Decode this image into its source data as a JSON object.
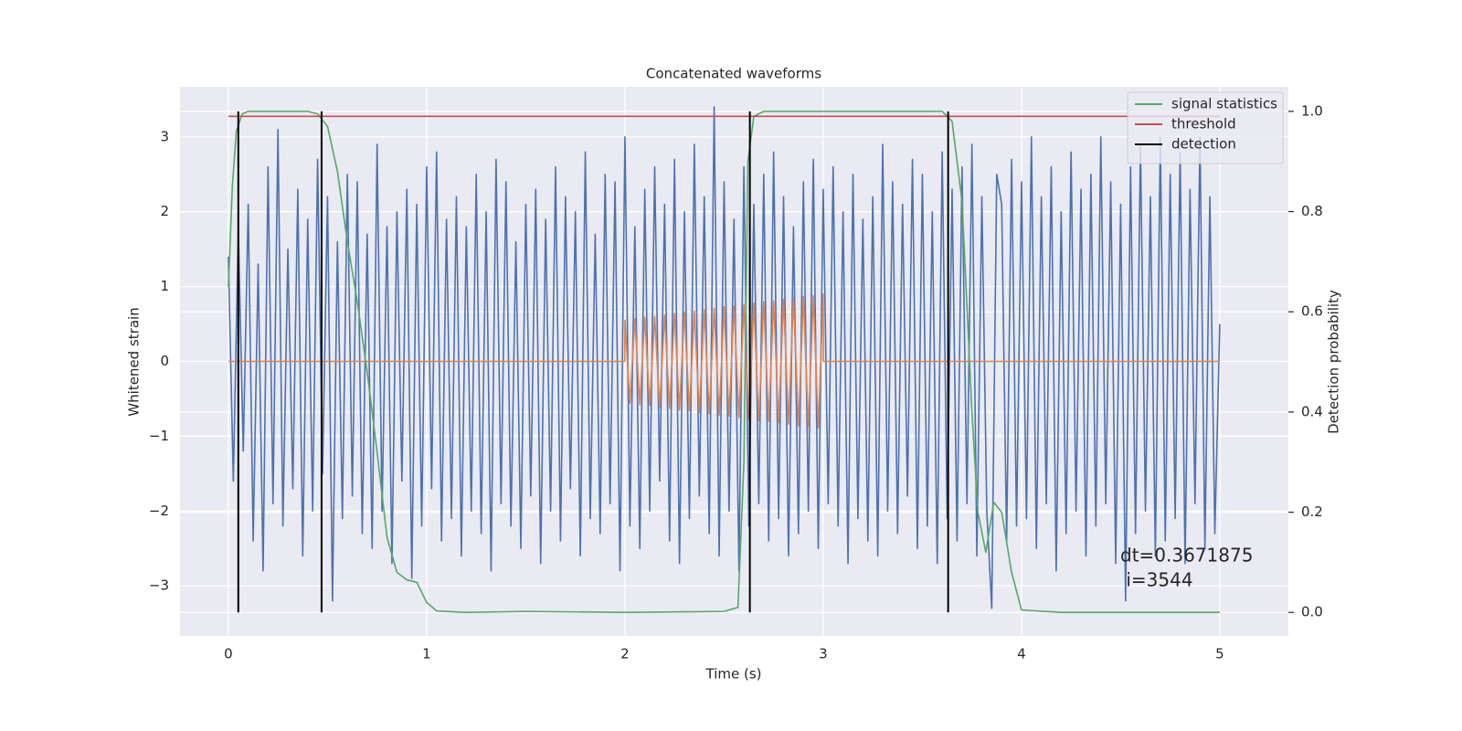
{
  "chart_data": {
    "type": "line",
    "title": "Concatenated waveforms",
    "xlabel": "Time (s)",
    "ylabel": "Whitened strain",
    "y2label": "Detection probability",
    "xlim": [
      -0.244,
      5.346
    ],
    "ylim": [
      -3.67,
      3.67
    ],
    "y2lim": [
      -0.047,
      1.049
    ],
    "xticks": [
      0,
      1,
      2,
      3,
      4,
      5
    ],
    "yticks": [
      {
        "value": -3,
        "label": "−3"
      },
      {
        "value": -2,
        "label": "−2"
      },
      {
        "value": -1,
        "label": "−1"
      },
      0,
      1,
      2,
      3
    ],
    "y2ticks": [
      {
        "value": 0,
        "label": "0.0"
      },
      0.2,
      0.4,
      0.6,
      0.8,
      {
        "value": 1,
        "label": "1.0"
      }
    ],
    "grid": true,
    "legend": "upper right",
    "annotations": [
      "dt=0.3671875",
      " i=3544"
    ],
    "series": [
      {
        "color": "#4c72b0",
        "x": [
          0,
          0.025,
          0.05,
          0.075,
          0.1,
          0.125,
          0.15,
          0.175,
          0.2,
          0.225,
          0.25,
          0.275,
          0.3,
          0.325,
          0.35,
          0.375,
          0.4,
          0.425,
          0.45,
          0.475,
          0.5,
          0.525,
          0.55,
          0.575,
          0.6,
          0.625,
          0.65,
          0.675,
          0.7,
          0.725,
          0.75,
          0.775,
          0.8,
          0.825,
          0.85,
          0.875,
          0.9,
          0.925,
          0.95,
          0.975,
          1,
          1.025,
          1.05,
          1.075,
          1.1,
          1.125,
          1.15,
          1.175,
          1.2,
          1.225,
          1.25,
          1.275,
          1.3,
          1.325,
          1.35,
          1.375,
          1.4,
          1.425,
          1.45,
          1.475,
          1.5,
          1.525,
          1.55,
          1.575,
          1.6,
          1.625,
          1.65,
          1.675,
          1.7,
          1.725,
          1.75,
          1.775,
          1.8,
          1.825,
          1.85,
          1.875,
          1.9,
          1.925,
          1.95,
          1.975,
          2,
          2.025,
          2.05,
          2.075,
          2.1,
          2.125,
          2.15,
          2.175,
          2.2,
          2.225,
          2.25,
          2.275,
          2.3,
          2.325,
          2.35,
          2.375,
          2.4,
          2.425,
          2.45,
          2.475,
          2.5,
          2.525,
          2.55,
          2.575,
          2.6,
          2.625,
          2.65,
          2.675,
          2.7,
          2.725,
          2.75,
          2.775,
          2.8,
          2.825,
          2.85,
          2.875,
          2.9,
          2.925,
          2.95,
          2.975,
          3,
          3.025,
          3.05,
          3.075,
          3.1,
          3.125,
          3.15,
          3.175,
          3.2,
          3.225,
          3.25,
          3.275,
          3.3,
          3.325,
          3.35,
          3.375,
          3.4,
          3.425,
          3.45,
          3.475,
          3.5,
          3.525,
          3.55,
          3.575,
          3.6,
          3.625,
          3.65,
          3.675,
          3.7,
          3.725,
          3.75,
          3.775,
          3.8,
          3.825,
          3.85,
          3.875,
          3.9,
          3.925,
          3.95,
          3.975,
          4,
          4.025,
          4.05,
          4.075,
          4.1,
          4.125,
          4.15,
          4.175,
          4.2,
          4.225,
          4.25,
          4.275,
          4.3,
          4.325,
          4.35,
          4.375,
          4.4,
          4.425,
          4.45,
          4.475,
          4.5,
          4.525,
          4.55,
          4.575,
          4.6,
          4.625,
          4.65,
          4.675,
          4.7,
          4.725,
          4.75,
          4.775,
          4.8,
          4.825,
          4.85,
          4.875,
          4.9,
          4.925,
          4.95,
          4.975,
          5
        ],
        "values": [
          1.4,
          -1.6,
          1.8,
          -1.2,
          2.1,
          -2.4,
          1.3,
          -2.8,
          2.6,
          -1.9,
          3.1,
          -2.2,
          1.5,
          -1.7,
          2.3,
          -2.6,
          1.9,
          -2.0,
          2.7,
          -1.5,
          2.2,
          -3.2,
          1.6,
          -2.1,
          2.5,
          -1.8,
          2.4,
          -2.3,
          1.7,
          -2.5,
          2.9,
          -2.0,
          1.8,
          -2.7,
          2.0,
          -1.6,
          2.3,
          -2.9,
          2.1,
          -2.2,
          2.6,
          -1.7,
          2.8,
          -2.4,
          1.9,
          -2.1,
          2.2,
          -2.6,
          1.8,
          -2.0,
          2.5,
          -2.3,
          2.0,
          -2.8,
          2.7,
          -1.9,
          2.4,
          -2.2,
          1.6,
          -2.5,
          2.1,
          -1.8,
          2.3,
          -2.7,
          1.9,
          -2.0,
          2.6,
          -2.4,
          2.2,
          -1.7,
          2.0,
          -2.6,
          2.8,
          -2.1,
          1.7,
          -2.3,
          2.5,
          -1.9,
          2.4,
          -2.8,
          3.0,
          -2.2,
          1.8,
          -2.5,
          2.3,
          -2.0,
          2.6,
          -1.6,
          2.1,
          -2.4,
          2.7,
          -2.7,
          2.0,
          -2.1,
          2.9,
          -1.8,
          2.2,
          -2.3,
          3.4,
          -2.6,
          2.4,
          -2.0,
          1.9,
          -2.8,
          2.6,
          -2.2,
          2.1,
          -1.9,
          2.5,
          -2.4,
          2.8,
          -2.1,
          2.2,
          -2.6,
          1.8,
          -2.3,
          2.4,
          -2.0,
          2.7,
          -2.5,
          2.3,
          -1.9,
          2.6,
          -2.2,
          2.0,
          -2.7,
          2.5,
          -2.1,
          1.9,
          -2.4,
          2.2,
          -2.6,
          2.9,
          -2.0,
          2.4,
          -2.3,
          2.1,
          -1.8,
          2.7,
          -2.5,
          2.5,
          -2.2,
          2.0,
          -2.7,
          2.8,
          -2.1,
          2.3,
          -2.4,
          2.6,
          -1.9,
          2.9,
          -2.6,
          2.2,
          -2.0,
          -3.3,
          2.5,
          2.1,
          -2.4,
          2.7,
          -2.2,
          2.4,
          -2.1,
          3.0,
          -2.5,
          2.2,
          -1.9,
          2.6,
          -2.8,
          2.0,
          -2.3,
          2.8,
          -2.0,
          2.3,
          -2.6,
          2.5,
          -2.2,
          3.0,
          -1.9,
          2.4,
          -2.7,
          2.1,
          -3.2,
          2.6,
          -2.3,
          2.9,
          -2.0,
          2.2,
          -2.6,
          3.0,
          -2.4,
          2.5,
          -2.1,
          2.8,
          -2.7,
          2.3,
          -1.9,
          3.0,
          -2.5,
          2.2,
          -2.3,
          0.5
        ]
      },
      {
        "color": "#dd8452",
        "x": [
          0,
          1.999,
          2,
          2.025,
          2.05,
          2.075,
          2.1,
          2.125,
          2.15,
          2.175,
          2.2,
          2.225,
          2.25,
          2.275,
          2.3,
          2.325,
          2.35,
          2.375,
          2.4,
          2.425,
          2.45,
          2.475,
          2.5,
          2.525,
          2.55,
          2.575,
          2.6,
          2.625,
          2.65,
          2.675,
          2.7,
          2.725,
          2.75,
          2.775,
          2.8,
          2.825,
          2.85,
          2.875,
          2.9,
          2.925,
          2.95,
          2.975,
          3,
          3.001,
          5
        ],
        "values": [
          0,
          0,
          0.55,
          -0.56,
          0.57,
          -0.58,
          0.59,
          -0.59,
          0.6,
          -0.61,
          0.62,
          -0.63,
          0.64,
          -0.65,
          0.66,
          -0.66,
          0.67,
          -0.68,
          0.69,
          -0.7,
          0.71,
          -0.72,
          0.73,
          -0.73,
          0.74,
          -0.75,
          0.76,
          -0.77,
          0.78,
          -0.79,
          0.8,
          -0.8,
          0.81,
          -0.82,
          0.83,
          -0.84,
          0.85,
          -0.86,
          0.87,
          -0.87,
          0.88,
          -0.89,
          0.9,
          0,
          0
        ]
      },
      {
        "name": "signal statistics",
        "color": "#55a868",
        "axis": "y2",
        "x": [
          0,
          0.02,
          0.04,
          0.07,
          0.1,
          0.4,
          0.45,
          0.5,
          0.55,
          0.6,
          0.65,
          0.7,
          0.75,
          0.8,
          0.85,
          0.9,
          0.95,
          1.0,
          1.05,
          1.2,
          1.5,
          2.0,
          2.5,
          2.57,
          2.6,
          2.62,
          2.65,
          2.7,
          3.6,
          3.65,
          3.7,
          3.75,
          3.78,
          3.82,
          3.86,
          3.9,
          3.95,
          4.0,
          4.2,
          5.0
        ],
        "values": [
          0.65,
          0.85,
          0.96,
          0.995,
          1.0,
          1.0,
          0.995,
          0.97,
          0.88,
          0.74,
          0.62,
          0.48,
          0.32,
          0.15,
          0.08,
          0.065,
          0.06,
          0.02,
          0.003,
          0.0,
          0.002,
          0.0,
          0.002,
          0.01,
          0.3,
          0.9,
          0.99,
          1.0,
          1.0,
          0.98,
          0.82,
          0.4,
          0.2,
          0.12,
          0.22,
          0.2,
          0.08,
          0.005,
          0.0,
          0.0
        ]
      },
      {
        "name": "threshold",
        "color": "#c44e52",
        "axis": "y2",
        "x": [
          0,
          5
        ],
        "values": [
          0.99,
          0.99
        ]
      }
    ],
    "detections": {
      "name": "detection",
      "color": "#000000",
      "x": [
        0.05,
        0.47,
        2.63,
        3.63
      ],
      "ymin": 0,
      "ymax": 1
    }
  }
}
